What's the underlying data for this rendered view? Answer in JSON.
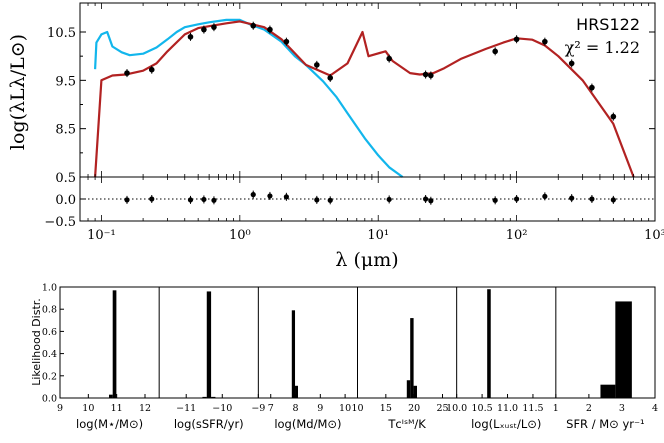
{
  "sed": {
    "object": "HRS122",
    "chi2_label": "χ² = 1.22",
    "ylabel": "log(λLλ/L⊙)",
    "xlabel": "λ (μm)",
    "yticks": [
      "8.5",
      "9.5",
      "10.5"
    ],
    "xticks": [
      "10⁻¹",
      "10⁰",
      "10¹",
      "10²",
      "10³"
    ],
    "xlim": [
      0.07,
      1000
    ],
    "ylim": [
      7.5,
      11.1
    ],
    "colors": {
      "intrinsic": "#12b6ec",
      "attenuated": "#b22222",
      "points": "#000000"
    }
  },
  "residual": {
    "yticks": [
      "0.5",
      "0.0",
      "−0.5"
    ],
    "ylim": [
      -0.5,
      0.5
    ]
  },
  "chart_data": [
    {
      "type": "line",
      "title": "",
      "xlabel": "λ (μm)",
      "ylabel": "log(λLλ/L⊙)",
      "xscale": "log",
      "xlim": [
        0.07,
        1000
      ],
      "ylim": [
        7.5,
        11.1
      ],
      "series": [
        {
          "style": "intrinsic-stellar-model",
          "x": [
            0.09,
            0.092,
            0.1,
            0.11,
            0.12,
            0.14,
            0.16,
            0.2,
            0.25,
            0.3,
            0.35,
            0.4,
            0.5,
            0.6,
            0.8,
            1.0,
            1.2,
            1.5,
            2.0,
            2.5,
            3.0,
            4.0,
            5.0,
            6.0,
            8.0,
            10,
            12,
            15
          ],
          "y": [
            9.73,
            10.28,
            10.45,
            10.5,
            10.2,
            10.08,
            10.02,
            10.05,
            10.18,
            10.35,
            10.5,
            10.6,
            10.66,
            10.7,
            10.75,
            10.75,
            10.65,
            10.55,
            10.3,
            10.0,
            9.82,
            9.48,
            9.15,
            8.82,
            8.3,
            7.95,
            7.7,
            7.45
          ]
        },
        {
          "style": "attenuated-model",
          "x": [
            0.09,
            0.1,
            0.12,
            0.15,
            0.2,
            0.25,
            0.3,
            0.4,
            0.5,
            0.6,
            0.8,
            1.0,
            1.5,
            2.0,
            3.0,
            4.5,
            6.0,
            7.7,
            8.5,
            11.3,
            12.7,
            17,
            20,
            25,
            30,
            40,
            60,
            80,
            100,
            130,
            160,
            200,
            300,
            500,
            700
          ],
          "y": [
            7.5,
            9.5,
            9.6,
            9.62,
            9.7,
            9.85,
            10.1,
            10.45,
            10.58,
            10.62,
            10.68,
            10.72,
            10.6,
            10.35,
            9.82,
            9.6,
            9.85,
            10.5,
            10.0,
            10.1,
            9.9,
            9.65,
            9.62,
            9.65,
            9.75,
            9.95,
            10.15,
            10.28,
            10.37,
            10.34,
            10.22,
            10.0,
            9.5,
            8.6,
            7.5
          ]
        },
        {
          "style": "observed-photometry",
          "x": [
            0.153,
            0.231,
            0.44,
            0.55,
            0.65,
            1.25,
            1.65,
            2.17,
            3.6,
            4.5,
            12,
            22,
            24,
            70,
            100,
            160,
            250,
            350,
            500
          ],
          "y": [
            9.65,
            9.72,
            10.4,
            10.55,
            10.6,
            10.63,
            10.55,
            10.3,
            9.82,
            9.55,
            9.95,
            9.62,
            9.6,
            10.1,
            10.35,
            10.3,
            9.85,
            9.35,
            8.75
          ]
        }
      ]
    },
    {
      "type": "scatter",
      "title": "",
      "xscale": "log",
      "xlim": [
        0.07,
        1000
      ],
      "ylim": [
        -0.5,
        0.5
      ],
      "series": [
        {
          "style": "residuals",
          "x": [
            0.153,
            0.231,
            0.44,
            0.55,
            0.65,
            1.25,
            1.65,
            2.17,
            3.6,
            4.5,
            12,
            22,
            24,
            70,
            100,
            160,
            250,
            350,
            500
          ],
          "y": [
            -0.02,
            0.0,
            -0.02,
            -0.01,
            -0.03,
            0.1,
            0.07,
            0.05,
            -0.02,
            -0.03,
            -0.01,
            0.0,
            -0.04,
            -0.03,
            0.0,
            0.06,
            0.02,
            0.0,
            -0.02
          ]
        }
      ]
    },
    {
      "type": "bar",
      "ylabel": "Likelihood Distr.",
      "ylim": [
        0,
        1
      ],
      "yticks": [
        "0.0",
        "0.2",
        "0.4",
        "0.6",
        "0.8",
        "1.0"
      ],
      "panels": [
        {
          "xlabel": "log(M⋆/M⊙)",
          "xlim": [
            9,
            12.5
          ],
          "xticks": [
            "9",
            "10",
            "11",
            "12"
          ],
          "bins": [
            [
              10.73,
              10.86,
              0.03
            ],
            [
              10.86,
              10.99,
              0.97
            ]
          ]
        },
        {
          "xlabel": "log(sSFR/yr)",
          "xlim": [
            -11.75,
            -9
          ],
          "xticks": [
            "−11",
            "−10",
            "−9"
          ],
          "bins": [
            [
              -10.55,
              -10.43,
              0.01
            ],
            [
              -10.43,
              -10.31,
              0.96
            ],
            [
              -10.31,
              -10.19,
              0.01
            ]
          ]
        },
        {
          "xlabel": "log(Md/M⊙)",
          "xlim": [
            6.5,
            10.5
          ],
          "xticks": [
            "7",
            "8",
            "9",
            "10"
          ],
          "bins": [
            [
              7.85,
              7.98,
              0.79
            ],
            [
              7.98,
              8.1,
              0.11
            ]
          ]
        },
        {
          "xlabel": "Tᴄᴵˢᴹ/K",
          "xlim": [
            10,
            27.5
          ],
          "xticks": [
            "10",
            "15",
            "20",
            "25"
          ],
          "bins": [
            [
              18.7,
              19.3,
              0.16
            ],
            [
              19.3,
              19.9,
              0.72
            ],
            [
              19.9,
              20.5,
              0.11
            ]
          ]
        },
        {
          "xlabel": "log(Lₓᵤₛₜ/L⊙)",
          "xlim": [
            10,
            11.95
          ],
          "xticks": [
            "10.0",
            "10.5",
            "11.0",
            "11.5"
          ],
          "bins": [
            [
              10.6,
              10.67,
              0.98
            ]
          ]
        },
        {
          "xlabel": "SFR / M⊙ yr⁻¹",
          "xlim": [
            1,
            4
          ],
          "xticks": [
            "1",
            "2",
            "3",
            "4"
          ],
          "bins": [
            [
              2.35,
              2.8,
              0.12
            ],
            [
              2.8,
              3.3,
              0.87
            ]
          ]
        }
      ]
    }
  ]
}
